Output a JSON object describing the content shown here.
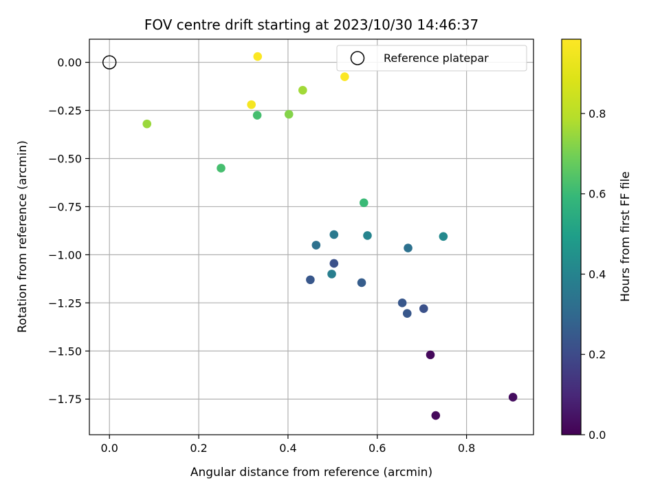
{
  "chart_data": {
    "type": "scatter",
    "title": "FOV centre drift starting at 2023/10/30 14:46:37",
    "xlabel": "Angular distance from reference (arcmin)",
    "ylabel": "Rotation from reference (arcmin)",
    "xlim": [
      -0.045,
      0.95
    ],
    "ylim": [
      -1.935,
      0.12
    ],
    "xticks": [
      0.0,
      0.2,
      0.4,
      0.6,
      0.8
    ],
    "xtick_labels": [
      "0.0",
      "0.2",
      "0.4",
      "0.6",
      "0.8"
    ],
    "yticks": [
      0.0,
      -0.25,
      -0.5,
      -0.75,
      -1.0,
      -1.25,
      -1.5,
      -1.75
    ],
    "ytick_labels": [
      "0.00",
      "−0.25",
      "−0.50",
      "−0.75",
      "−1.00",
      "−1.25",
      "−1.50",
      "−1.75"
    ],
    "grid": true,
    "legend": {
      "position": "upper-right",
      "entries": [
        "Reference platepar"
      ]
    },
    "reference_point": {
      "x": 0.0,
      "y": 0.0,
      "name": "Reference platepar",
      "marker": "hollow-circle"
    },
    "colorbar": {
      "label": "Hours from first FF file",
      "colormap": "viridis",
      "range": [
        0.0,
        0.985
      ],
      "ticks": [
        0.0,
        0.2,
        0.4,
        0.6,
        0.8
      ],
      "tick_labels": [
        "0.0",
        "0.2",
        "0.4",
        "0.6",
        "0.8"
      ]
    },
    "points": [
      {
        "x": 0.332,
        "y": 0.03,
        "c": 0.98
      },
      {
        "x": 0.527,
        "y": -0.075,
        "c": 0.98
      },
      {
        "x": 0.318,
        "y": -0.22,
        "c": 0.96
      },
      {
        "x": 0.433,
        "y": -0.145,
        "c": 0.76
      },
      {
        "x": 0.084,
        "y": -0.32,
        "c": 0.75
      },
      {
        "x": 0.402,
        "y": -0.27,
        "c": 0.72
      },
      {
        "x": 0.331,
        "y": -0.275,
        "c": 0.62
      },
      {
        "x": 0.25,
        "y": -0.55,
        "c": 0.62
      },
      {
        "x": 0.57,
        "y": -0.73,
        "c": 0.6
      },
      {
        "x": 0.748,
        "y": -0.905,
        "c": 0.42
      },
      {
        "x": 0.503,
        "y": -0.895,
        "c": 0.36
      },
      {
        "x": 0.578,
        "y": -0.9,
        "c": 0.4
      },
      {
        "x": 0.463,
        "y": -0.95,
        "c": 0.33
      },
      {
        "x": 0.669,
        "y": -0.965,
        "c": 0.33
      },
      {
        "x": 0.503,
        "y": -1.045,
        "c": 0.22
      },
      {
        "x": 0.498,
        "y": -1.1,
        "c": 0.38
      },
      {
        "x": 0.45,
        "y": -1.13,
        "c": 0.24
      },
      {
        "x": 0.565,
        "y": -1.145,
        "c": 0.26
      },
      {
        "x": 0.656,
        "y": -1.25,
        "c": 0.24
      },
      {
        "x": 0.704,
        "y": -1.28,
        "c": 0.22
      },
      {
        "x": 0.667,
        "y": -1.305,
        "c": 0.24
      },
      {
        "x": 0.719,
        "y": -1.52,
        "c": 0.02
      },
      {
        "x": 0.904,
        "y": -1.74,
        "c": 0.03
      },
      {
        "x": 0.731,
        "y": -1.835,
        "c": 0.02
      }
    ]
  }
}
